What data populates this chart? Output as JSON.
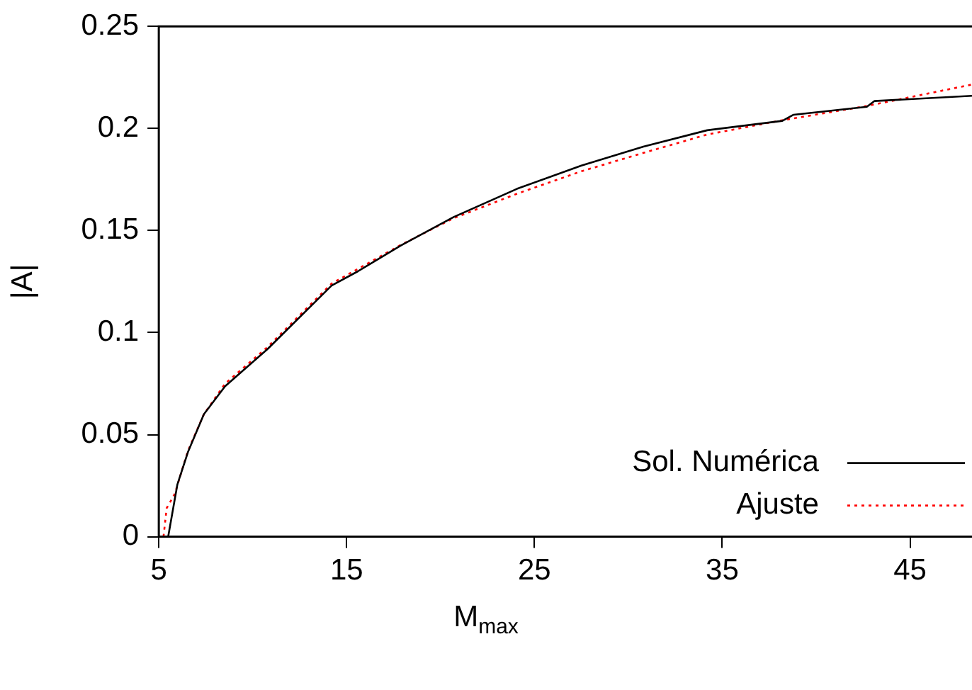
{
  "chart_data": {
    "type": "line",
    "xlabel": "M$_{max}$",
    "ylabel": "|A|",
    "xlim": [
      5,
      48.3
    ],
    "xticks": [
      5,
      15,
      25,
      35,
      45
    ],
    "ylim": [
      0,
      0.25
    ],
    "yticks": [
      0,
      0.05,
      0.1,
      0.15,
      0.2,
      0.25
    ],
    "grid": false,
    "legend": "bottom right",
    "marker": "none",
    "series": [
      {
        "name": "Sol. Numérica",
        "color": "#000000",
        "line_style": "solid",
        "x": [
          5.5,
          5.99,
          6.55,
          7.4,
          8.53,
          10.8,
          14.2,
          15.6,
          17.9,
          20.7,
          24.07,
          27.5,
          30.8,
          34.2,
          38.2,
          38.8,
          42.7,
          43.1,
          48.3
        ],
        "values": [
          0,
          0.0256,
          0.0414,
          0.06,
          0.0737,
          0.092,
          0.123,
          0.13,
          0.1427,
          0.1566,
          0.1704,
          0.1818,
          0.1911,
          0.1991,
          0.2037,
          0.2067,
          0.2106,
          0.2134,
          0.216
        ]
      },
      {
        "name": "Ajuste",
        "color": "#ff0000",
        "line_style": "dotted",
        "x": [
          5.25,
          5.42,
          5.85,
          6.55,
          7.4,
          8.53,
          10.8,
          14.2,
          17.9,
          20.7,
          24.07,
          27.5,
          30.8,
          34.2,
          38.2,
          42.7,
          48.3
        ],
        "values": [
          0,
          0.014,
          0.021,
          0.042,
          0.06,
          0.075,
          0.093,
          0.124,
          0.143,
          0.156,
          0.168,
          0.179,
          0.188,
          0.197,
          0.204,
          0.211,
          0.2215
        ]
      }
    ]
  }
}
